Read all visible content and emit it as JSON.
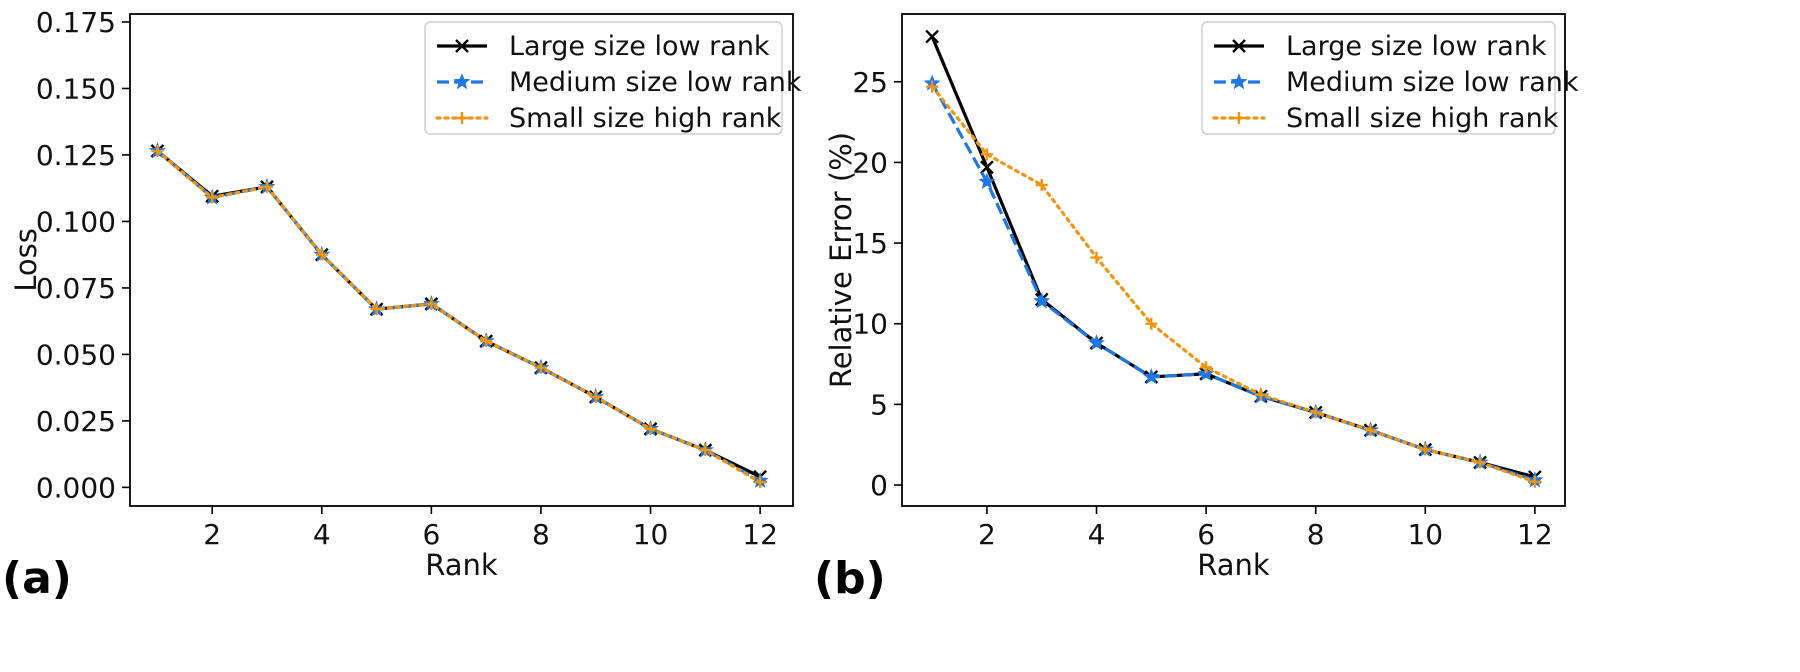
{
  "colors": {
    "large": "#000000",
    "medium": "#1f77e4",
    "small": "#f0950f"
  },
  "chart_data": [
    {
      "type": "line",
      "panel_label": "(a)",
      "title": "",
      "xlabel": "Rank",
      "ylabel": "Loss",
      "xlim": [
        0.5,
        12.6
      ],
      "ylim": [
        -0.007,
        0.178
      ],
      "xticks": [
        2,
        4,
        6,
        8,
        10,
        12
      ],
      "xtick_labels": [
        "2",
        "4",
        "6",
        "8",
        "10",
        "12"
      ],
      "yticks": [
        0.0,
        0.025,
        0.05,
        0.075,
        0.1,
        0.125,
        0.15,
        0.175
      ],
      "ytick_labels": [
        "0.000",
        "0.025",
        "0.050",
        "0.075",
        "0.100",
        "0.125",
        "0.150",
        "0.175"
      ],
      "legend_position": "upper-right",
      "x": [
        1,
        2,
        3,
        4,
        5,
        6,
        7,
        8,
        9,
        10,
        11,
        12
      ],
      "series": [
        {
          "key": "large",
          "name": "Large size low rank",
          "style": "solid",
          "marker": "x",
          "values": [
            0.1265,
            0.1095,
            0.113,
            0.0875,
            0.067,
            0.069,
            0.055,
            0.045,
            0.034,
            0.022,
            0.014,
            0.004
          ]
        },
        {
          "key": "medium",
          "name": "Medium size low rank",
          "style": "dashed",
          "marker": "star",
          "values": [
            0.1265,
            0.109,
            0.113,
            0.0875,
            0.067,
            0.069,
            0.055,
            0.045,
            0.034,
            0.022,
            0.014,
            0.0025
          ]
        },
        {
          "key": "small",
          "name": "Small size high rank",
          "style": "dotted",
          "marker": "plus",
          "values": [
            0.1265,
            0.109,
            0.113,
            0.0875,
            0.067,
            0.069,
            0.055,
            0.045,
            0.034,
            0.022,
            0.014,
            0.002
          ]
        }
      ]
    },
    {
      "type": "line",
      "panel_label": "(b)",
      "title": "",
      "xlabel": "Rank",
      "ylabel": "Relative Error (%)",
      "xlim": [
        0.45,
        12.55
      ],
      "ylim": [
        -1.3,
        29.2
      ],
      "xticks": [
        2,
        4,
        6,
        8,
        10,
        12
      ],
      "xtick_labels": [
        "2",
        "4",
        "6",
        "8",
        "10",
        "12"
      ],
      "yticks": [
        0,
        5,
        10,
        15,
        20,
        25
      ],
      "ytick_labels": [
        "0",
        "5",
        "10",
        "15",
        "20",
        "25"
      ],
      "legend_position": "upper-right",
      "x": [
        1,
        2,
        3,
        4,
        5,
        6,
        7,
        8,
        9,
        10,
        11,
        12
      ],
      "series": [
        {
          "key": "large",
          "name": "Large size low rank",
          "style": "solid",
          "marker": "x",
          "values": [
            27.8,
            19.7,
            11.5,
            8.8,
            6.7,
            6.9,
            5.5,
            4.5,
            3.4,
            2.2,
            1.4,
            0.5
          ]
        },
        {
          "key": "medium",
          "name": "Medium size low rank",
          "style": "dashed",
          "marker": "star",
          "values": [
            24.9,
            18.8,
            11.4,
            8.8,
            6.7,
            6.9,
            5.5,
            4.5,
            3.4,
            2.2,
            1.4,
            0.3
          ]
        },
        {
          "key": "small",
          "name": "Small size high rank",
          "style": "dotted",
          "marker": "plus",
          "values": [
            24.7,
            20.5,
            18.6,
            14.1,
            10.0,
            7.3,
            5.6,
            4.5,
            3.4,
            2.2,
            1.4,
            0.2
          ]
        }
      ]
    }
  ]
}
